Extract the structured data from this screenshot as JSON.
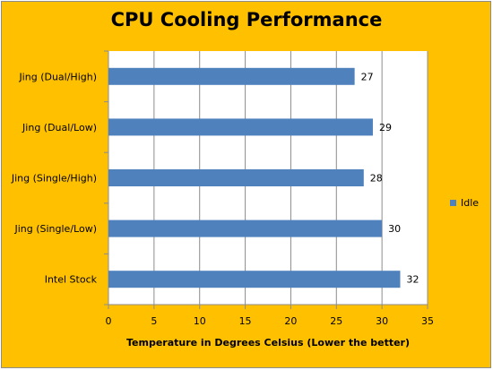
{
  "chart_data": {
    "type": "bar",
    "orientation": "horizontal",
    "title": "CPU Cooling Performance",
    "xlabel": "Temperature in Degrees Celsius (Lower the  better)",
    "ylabel": "",
    "categories": [
      "Jing (Dual/High)",
      "Jing (Dual/Low)",
      "Jing (Single/High)",
      "Jing (Single/Low)",
      "Intel Stock"
    ],
    "series": [
      {
        "name": "Idle",
        "values": [
          27,
          29,
          28,
          30,
          32
        ],
        "color": "#4f81bd"
      }
    ],
    "xlim": [
      0,
      35
    ],
    "xticks": [
      "0",
      "5",
      "10",
      "15",
      "20",
      "25",
      "30",
      "35"
    ],
    "grid": true,
    "legend_position": "right",
    "background_color": "#ffc000",
    "plot_background_color": "#ffffff"
  }
}
